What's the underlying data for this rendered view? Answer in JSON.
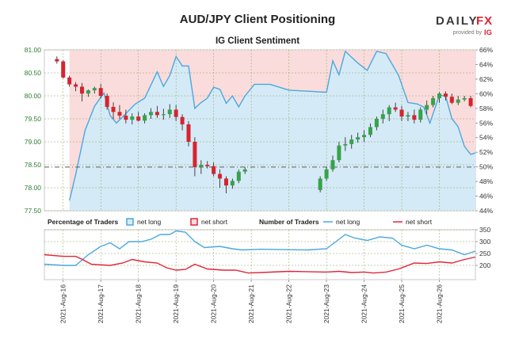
{
  "header": {
    "title": "AUD/JPY Client Positioning",
    "subtitle": "IG Client Sentiment",
    "brand": {
      "name_part1": "DAILY",
      "name_part2": "FX",
      "tagline": "provided by",
      "provider": "IG"
    }
  },
  "colors": {
    "bull": "#35a34a",
    "bear": "#d7242d",
    "net_long": "#4aa8e0",
    "net_long_fill": "#d5eaf7",
    "net_short": "#e0263a",
    "net_short_fill": "#fadcdc",
    "brand_red": "#e1232f",
    "grid": "#8aa25a",
    "dashline": "#5a5a5a"
  },
  "legend": {
    "percentage_title": "Percentage of Traders",
    "number_title": "Number of Traders",
    "net_long": "net long",
    "net_short": "net short"
  },
  "chart_data": [
    {
      "type": "candlestick",
      "title": "AUD/JPY",
      "ylim": [
        77.5,
        81.0
      ],
      "yticks": [
        "81.00",
        "80.50",
        "80.00",
        "79.50",
        "79.00",
        "78.50",
        "78.00",
        "77.50"
      ],
      "reference_line": 78.45,
      "time_range": [
        "2021-08-15T12:00",
        "2021-08-26T23:00"
      ],
      "candles": [
        [
          "2021-08-15T20:00",
          80.8,
          80.86,
          80.7,
          80.75
        ],
        [
          "2021-08-16T00:00",
          80.75,
          80.78,
          80.38,
          80.4
        ],
        [
          "2021-08-16T04:00",
          80.4,
          80.44,
          80.2,
          80.25
        ],
        [
          "2021-08-16T08:00",
          80.25,
          80.3,
          80.1,
          80.2
        ],
        [
          "2021-08-16T12:00",
          80.2,
          80.28,
          79.88,
          80.05
        ],
        [
          "2021-08-16T16:00",
          80.05,
          80.14,
          79.98,
          80.12
        ],
        [
          "2021-08-16T20:00",
          80.12,
          80.2,
          80.05,
          80.17
        ],
        [
          "2021-08-17T00:00",
          80.17,
          80.26,
          79.95,
          80.0
        ],
        [
          "2021-08-17T04:00",
          80.0,
          80.05,
          79.7,
          79.76
        ],
        [
          "2021-08-17T08:00",
          79.76,
          79.86,
          79.5,
          79.65
        ],
        [
          "2021-08-17T12:00",
          79.65,
          79.8,
          79.5,
          79.57
        ],
        [
          "2021-08-17T16:00",
          79.57,
          79.7,
          79.4,
          79.48
        ],
        [
          "2021-08-17T20:00",
          79.48,
          79.62,
          79.38,
          79.55
        ],
        [
          "2021-08-18T00:00",
          79.55,
          79.65,
          79.44,
          79.46
        ],
        [
          "2021-08-18T04:00",
          79.46,
          79.62,
          79.4,
          79.58
        ],
        [
          "2021-08-18T08:00",
          79.58,
          79.73,
          79.5,
          79.65
        ],
        [
          "2021-08-18T12:00",
          79.65,
          79.78,
          79.52,
          79.58
        ],
        [
          "2021-08-18T16:00",
          79.58,
          79.72,
          79.48,
          79.6
        ],
        [
          "2021-08-18T20:00",
          79.6,
          79.82,
          79.52,
          79.7
        ],
        [
          "2021-08-19T00:00",
          79.7,
          79.8,
          79.45,
          79.54
        ],
        [
          "2021-08-19T04:00",
          79.54,
          79.6,
          79.25,
          79.38
        ],
        [
          "2021-08-19T08:00",
          79.38,
          79.45,
          78.9,
          79.0
        ],
        [
          "2021-08-19T12:00",
          79.0,
          79.1,
          78.25,
          78.45
        ],
        [
          "2021-08-19T16:00",
          78.45,
          78.6,
          78.3,
          78.5
        ],
        [
          "2021-08-19T20:00",
          78.5,
          78.58,
          78.42,
          78.47
        ],
        [
          "2021-08-20T00:00",
          78.47,
          78.55,
          78.25,
          78.3
        ],
        [
          "2021-08-20T04:00",
          78.3,
          78.4,
          78.0,
          78.2
        ],
        [
          "2021-08-20T08:00",
          78.2,
          78.25,
          77.88,
          78.05
        ],
        [
          "2021-08-20T12:00",
          78.05,
          78.2,
          77.98,
          78.15
        ],
        [
          "2021-08-20T16:00",
          78.15,
          78.4,
          78.1,
          78.35
        ],
        [
          "2021-08-20T20:00",
          78.35,
          78.45,
          78.3,
          78.4
        ],
        [
          "2021-08-22T20:00",
          77.95,
          78.25,
          77.9,
          78.2
        ],
        [
          "2021-08-23T00:00",
          78.2,
          78.45,
          78.15,
          78.4
        ],
        [
          "2021-08-23T04:00",
          78.4,
          78.7,
          78.35,
          78.6
        ],
        [
          "2021-08-23T08:00",
          78.6,
          79.0,
          78.55,
          78.92
        ],
        [
          "2021-08-23T12:00",
          78.92,
          79.1,
          78.8,
          78.95
        ],
        [
          "2021-08-23T16:00",
          78.95,
          79.15,
          78.85,
          79.05
        ],
        [
          "2021-08-23T20:00",
          79.05,
          79.2,
          78.98,
          79.1
        ],
        [
          "2021-08-24T00:00",
          79.1,
          79.25,
          79.0,
          79.15
        ],
        [
          "2021-08-24T04:00",
          79.15,
          79.4,
          79.1,
          79.32
        ],
        [
          "2021-08-24T08:00",
          79.32,
          79.55,
          79.25,
          79.5
        ],
        [
          "2021-08-24T12:00",
          79.5,
          79.7,
          79.4,
          79.6
        ],
        [
          "2021-08-24T16:00",
          79.6,
          79.8,
          79.45,
          79.75
        ],
        [
          "2021-08-24T20:00",
          79.75,
          79.85,
          79.65,
          79.7
        ],
        [
          "2021-08-25T00:00",
          79.7,
          79.78,
          79.45,
          79.55
        ],
        [
          "2021-08-25T04:00",
          79.55,
          79.65,
          79.45,
          79.58
        ],
        [
          "2021-08-25T08:00",
          79.58,
          79.7,
          79.4,
          79.48
        ],
        [
          "2021-08-25T12:00",
          79.48,
          79.75,
          79.42,
          79.7
        ],
        [
          "2021-08-25T16:00",
          79.7,
          79.9,
          79.6,
          79.8
        ],
        [
          "2021-08-25T20:00",
          79.8,
          80.0,
          79.75,
          79.95
        ],
        [
          "2021-08-26T00:00",
          79.95,
          80.08,
          79.85,
          80.05
        ],
        [
          "2021-08-26T04:00",
          80.05,
          80.1,
          79.9,
          79.98
        ],
        [
          "2021-08-26T08:00",
          79.98,
          80.05,
          79.82,
          79.85
        ],
        [
          "2021-08-26T12:00",
          79.85,
          80.0,
          79.8,
          79.92
        ],
        [
          "2021-08-26T16:00",
          79.92,
          80.0,
          79.88,
          79.95
        ],
        [
          "2021-08-26T20:00",
          79.95,
          80.0,
          79.75,
          79.78
        ]
      ]
    },
    {
      "type": "area",
      "title": "Percentage of Traders",
      "y_axis_side": "right",
      "ylim": [
        44,
        66
      ],
      "yticks": [
        "66%",
        "64%",
        "62%",
        "60%",
        "58%",
        "56%",
        "54%",
        "52%",
        "50%",
        "48%",
        "46%",
        "44%"
      ],
      "series": [
        {
          "name": "net long",
          "points": [
            [
              "2021-08-16T04:00",
              45.4
            ],
            [
              "2021-08-16T08:00",
              49.0
            ],
            [
              "2021-08-16T14:00",
              55.0
            ],
            [
              "2021-08-16T20:00",
              58.3
            ],
            [
              "2021-08-17T02:00",
              60.1
            ],
            [
              "2021-08-17T06:00",
              57.0
            ],
            [
              "2021-08-17T10:00",
              56.0
            ],
            [
              "2021-08-17T16:00",
              57.3
            ],
            [
              "2021-08-17T22:00",
              58.6
            ],
            [
              "2021-08-18T04:00",
              59.4
            ],
            [
              "2021-08-18T08:00",
              61.2
            ],
            [
              "2021-08-18T12:00",
              63.0
            ],
            [
              "2021-08-18T16:00",
              61.0
            ],
            [
              "2021-08-18T20:00",
              62.5
            ],
            [
              "2021-08-19T00:00",
              65.1
            ],
            [
              "2021-08-19T04:00",
              63.8
            ],
            [
              "2021-08-19T08:00",
              63.8
            ],
            [
              "2021-08-19T12:00",
              58.0
            ],
            [
              "2021-08-19T16:00",
              58.8
            ],
            [
              "2021-08-19T20:00",
              59.4
            ],
            [
              "2021-08-20T00:00",
              60.9
            ],
            [
              "2021-08-20T04:00",
              60.6
            ],
            [
              "2021-08-20T08:00",
              58.7
            ],
            [
              "2021-08-20T12:00",
              59.7
            ],
            [
              "2021-08-20T16:00",
              58.2
            ],
            [
              "2021-08-20T20:00",
              59.7
            ],
            [
              "2021-08-21T02:00",
              61.3
            ],
            [
              "2021-08-21T12:00",
              61.3
            ],
            [
              "2021-08-22T00:00",
              60.5
            ],
            [
              "2021-08-23T00:00",
              60.2
            ],
            [
              "2021-08-23T04:00",
              64.5
            ],
            [
              "2021-08-23T08:00",
              62.6
            ],
            [
              "2021-08-23T12:00",
              65.8
            ],
            [
              "2021-08-23T20:00",
              64.2
            ],
            [
              "2021-08-24T02:00",
              63.2
            ],
            [
              "2021-08-24T08:00",
              65.8
            ],
            [
              "2021-08-24T14:00",
              65.5
            ],
            [
              "2021-08-24T22:00",
              62.5
            ],
            [
              "2021-08-25T04:00",
              58.8
            ],
            [
              "2021-08-25T10:00",
              58.6
            ],
            [
              "2021-08-25T14:00",
              58.2
            ],
            [
              "2021-08-25T18:00",
              56.0
            ],
            [
              "2021-08-26T00:00",
              59.8
            ],
            [
              "2021-08-26T04:00",
              59.7
            ],
            [
              "2021-08-26T08:00",
              56.6
            ],
            [
              "2021-08-26T12:00",
              55.5
            ],
            [
              "2021-08-26T16:00",
              52.8
            ],
            [
              "2021-08-26T20:00",
              51.7
            ],
            [
              "2021-08-26T23:00",
              51.9
            ]
          ]
        }
      ]
    },
    {
      "type": "line",
      "title": "Number of Traders",
      "y_axis_side": "right",
      "ylim": [
        140,
        350
      ],
      "yticks": [
        "350",
        "300",
        "250",
        "200"
      ],
      "series": [
        {
          "name": "net long",
          "points": [
            [
              "2021-08-15T12:00",
              205
            ],
            [
              "2021-08-16T00:00",
              200
            ],
            [
              "2021-08-16T08:00",
              200
            ],
            [
              "2021-08-16T16:00",
              245
            ],
            [
              "2021-08-17T00:00",
              280
            ],
            [
              "2021-08-17T06:00",
              295
            ],
            [
              "2021-08-17T12:00",
              270
            ],
            [
              "2021-08-17T18:00",
              300
            ],
            [
              "2021-08-18T02:00",
              300
            ],
            [
              "2021-08-18T08:00",
              310
            ],
            [
              "2021-08-18T14:00",
              330
            ],
            [
              "2021-08-18T20:00",
              330
            ],
            [
              "2021-08-19T00:00",
              345
            ],
            [
              "2021-08-19T06:00",
              340
            ],
            [
              "2021-08-19T12:00",
              300
            ],
            [
              "2021-08-19T18:00",
              275
            ],
            [
              "2021-08-20T04:00",
              280
            ],
            [
              "2021-08-20T12:00",
              270
            ],
            [
              "2021-08-20T18:00",
              265
            ],
            [
              "2021-08-21T06:00",
              268
            ],
            [
              "2021-08-22T12:00",
              265
            ],
            [
              "2021-08-23T00:00",
              270
            ],
            [
              "2021-08-23T06:00",
              300
            ],
            [
              "2021-08-23T12:00",
              330
            ],
            [
              "2021-08-23T18:00",
              315
            ],
            [
              "2021-08-24T02:00",
              305
            ],
            [
              "2021-08-24T10:00",
              320
            ],
            [
              "2021-08-24T18:00",
              315
            ],
            [
              "2021-08-25T00:00",
              285
            ],
            [
              "2021-08-25T08:00",
              270
            ],
            [
              "2021-08-25T16:00",
              285
            ],
            [
              "2021-08-26T00:00",
              270
            ],
            [
              "2021-08-26T08:00",
              265
            ],
            [
              "2021-08-26T16:00",
              245
            ],
            [
              "2021-08-26T23:00",
              260
            ]
          ]
        },
        {
          "name": "net short",
          "points": [
            [
              "2021-08-15T12:00",
              245
            ],
            [
              "2021-08-16T00:00",
              238
            ],
            [
              "2021-08-16T08:00",
              238
            ],
            [
              "2021-08-16T12:00",
              226
            ],
            [
              "2021-08-16T18:00",
              205
            ],
            [
              "2021-08-17T06:00",
              200
            ],
            [
              "2021-08-17T14:00",
              210
            ],
            [
              "2021-08-17T20:00",
              225
            ],
            [
              "2021-08-18T04:00",
              215
            ],
            [
              "2021-08-18T12:00",
              210
            ],
            [
              "2021-08-18T18:00",
              190
            ],
            [
              "2021-08-19T00:00",
              180
            ],
            [
              "2021-08-19T06:00",
              183
            ],
            [
              "2021-08-19T12:00",
              205
            ],
            [
              "2021-08-19T20:00",
              185
            ],
            [
              "2021-08-20T06:00",
              180
            ],
            [
              "2021-08-20T14:00",
              180
            ],
            [
              "2021-08-20T22:00",
              168
            ],
            [
              "2021-08-21T06:00",
              170
            ],
            [
              "2021-08-22T00:00",
              175
            ],
            [
              "2021-08-23T00:00",
              172
            ],
            [
              "2021-08-23T08:00",
              175
            ],
            [
              "2021-08-23T16:00",
              170
            ],
            [
              "2021-08-24T00:00",
              172
            ],
            [
              "2021-08-24T06:00",
              168
            ],
            [
              "2021-08-24T14:00",
              172
            ],
            [
              "2021-08-24T22:00",
              185
            ],
            [
              "2021-08-25T08:00",
              210
            ],
            [
              "2021-08-25T16:00",
              208
            ],
            [
              "2021-08-26T00:00",
              215
            ],
            [
              "2021-08-26T08:00",
              210
            ],
            [
              "2021-08-26T16:00",
              225
            ],
            [
              "2021-08-26T23:00",
              235
            ]
          ]
        }
      ]
    }
  ],
  "x_axis": {
    "ticks": [
      "2021-Aug-16",
      "2021-Aug-17",
      "2021-Aug-18",
      "2021-Aug-19",
      "2021-Aug-20",
      "2021-Aug-21",
      "2021-Aug-22",
      "2021-Aug-23",
      "2021-Aug-24",
      "2021-Aug-25",
      "2021-Aug-26"
    ]
  }
}
